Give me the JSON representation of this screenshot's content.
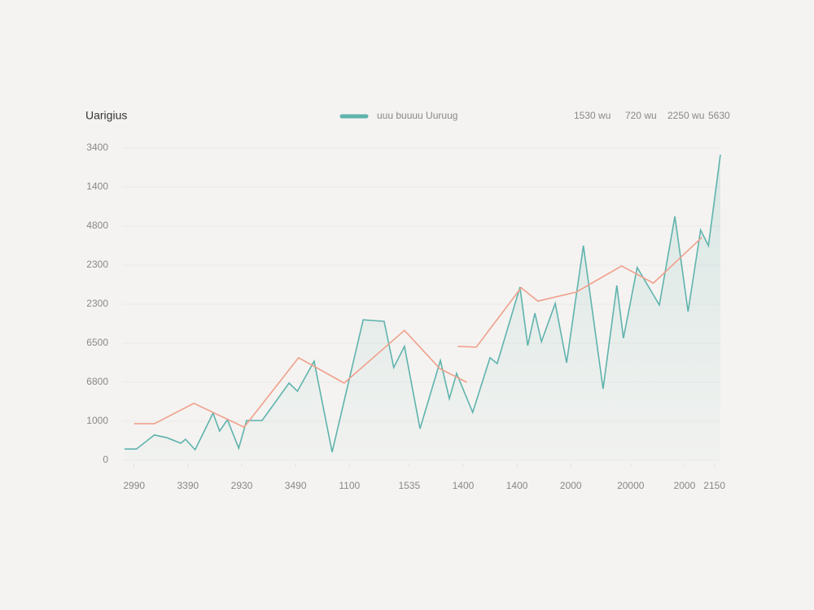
{
  "chart_data": {
    "type": "line",
    "title": "Uarigius",
    "annotations": [
      "1530 wu",
      "720 wu",
      "2250 wu",
      "5630"
    ],
    "xlim": [
      0,
      100
    ],
    "ylim": [
      0,
      8000
    ],
    "grid": true,
    "xticks": [
      {
        "value": 2,
        "label": "2990"
      },
      {
        "value": 11,
        "label": "3390"
      },
      {
        "value": 20,
        "label": "2930"
      },
      {
        "value": 29,
        "label": "3490"
      },
      {
        "value": 38,
        "label": "1100"
      },
      {
        "value": 48,
        "label": "1535"
      },
      {
        "value": 57,
        "label": "1400"
      },
      {
        "value": 66,
        "label": "1400"
      },
      {
        "value": 75,
        "label": "2000"
      },
      {
        "value": 85,
        "label": "20000"
      },
      {
        "value": 94,
        "label": "2000"
      },
      {
        "value": 99,
        "label": "2150"
      }
    ],
    "yticks": [
      0,
      1000,
      {
        "value": 2000,
        "label": "6800"
      },
      {
        "value": 3000,
        "label": "6500"
      },
      {
        "value": 4000,
        "label": "2300"
      },
      {
        "value": 5000,
        "label": "2300"
      },
      {
        "value": 6000,
        "label": "4800"
      },
      {
        "value": 7000,
        "label": "1400"
      },
      {
        "value": 8000,
        "label": "3400"
      }
    ],
    "series": [
      {
        "name": "uuu buuuu Uuruug",
        "color": "#5fb3ad",
        "area": true,
        "x": [
          0.4,
          2.4,
          5.4,
          7.5,
          9.8,
          10.6,
          12.2,
          15.2,
          16.3,
          17.6,
          19.5,
          20.8,
          23.4,
          27.9,
          29.3,
          32.1,
          35.1,
          40.3,
          43.8,
          45.4,
          47.2,
          49.8,
          53.2,
          54.7,
          55.9,
          58.6,
          61.5,
          62.7,
          66.5,
          67.8,
          69,
          70.1,
          72.4,
          74.3,
          77.1,
          80.4,
          82.7,
          83.8,
          86.1,
          89.8,
          92.4,
          94.6,
          96.7,
          98,
          100
        ],
        "values": [
          290,
          290,
          650,
          580,
          440,
          540,
          270,
          1210,
          750,
          1040,
          310,
          1020,
          1020,
          1980,
          1770,
          2540,
          210,
          3600,
          3560,
          2380,
          2920,
          810,
          2560,
          1580,
          2230,
          1230,
          2630,
          2480,
          4440,
          2940,
          3770,
          3040,
          4020,
          2500,
          5500,
          1830,
          4480,
          3130,
          4940,
          3980,
          6250,
          3810,
          5900,
          5500,
          7830
        ]
      },
      {
        "color": "#f0a08c",
        "area": false,
        "x": [
          2,
          5.4,
          12,
          20.4,
          29.5,
          37.1,
          47.2,
          53.1,
          57.6,
          null,
          56.1,
          59.2,
          66.7,
          69.5,
          75.9,
          83.5,
          88.8,
          96.9
        ],
        "values": [
          940,
          940,
          1460,
          850,
          2630,
          1980,
          3330,
          2350,
          2000,
          null,
          2920,
          2900,
          4420,
          4080,
          4310,
          4980,
          4540,
          5710
        ]
      }
    ]
  }
}
